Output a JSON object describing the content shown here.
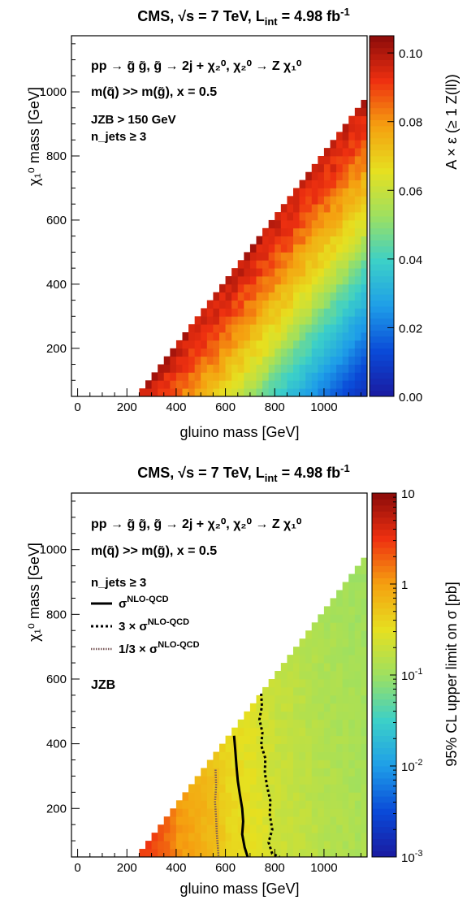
{
  "colors": {
    "palette": [
      "#1a1aa0",
      "#0a4ad8",
      "#1e9ee8",
      "#3cd0c8",
      "#9ee060",
      "#e6e020",
      "#f5a010",
      "#ee3010",
      "#8a0a0a"
    ],
    "limit_line": "#000000",
    "background": "#ffffff"
  },
  "chart_data": [
    {
      "type": "heatmap",
      "title": "CMS, √s = 7 TeV, L_int = 4.98 fb^-1",
      "title_parts": {
        "exp": "CMS, ",
        "sqrt": "√s = 7 TeV, L",
        "lumi_sub": "int",
        "lumi_val": " = 4.98 fb",
        "lumi_sup": "-1"
      },
      "xlabel": "gluino mass [GeV]",
      "ylabel": "χ₁⁰ mass [GeV]",
      "zlabel": "A × ε (≥ 1 Z(ll))",
      "xlim": [
        -25,
        1175
      ],
      "ylim": [
        50,
        1175
      ],
      "zlim": [
        0.0,
        0.105
      ],
      "z_scale": "linear",
      "xticks": [
        0,
        200,
        400,
        600,
        800,
        1000
      ],
      "yticks": [
        200,
        400,
        600,
        800,
        1000
      ],
      "zticks": [
        "0.00",
        "0.02",
        "0.04",
        "0.06",
        "0.08",
        "0.10"
      ],
      "annotations": [
        "pp → g̃ g̃, g̃ → 2j + χ₂⁰, χ₂⁰ → Z χ₁⁰",
        "m(q̃) >> m(g̃), x = 0.5",
        "JZB > 150 GeV",
        "n_jets ≥ 3"
      ],
      "grid": false,
      "bin_width_gev": 25,
      "region": "χ₁⁰ mass ≤ gluino mass − 200 GeV, gluino mass 250–1175 GeV, χ₁⁰ mass ≥ 50 GeV",
      "profile": [
        {
          "gap_gev": 0,
          "z": 0.098
        },
        {
          "gap_gev": 100,
          "z": 0.09
        },
        {
          "gap_gev": 200,
          "z": 0.08
        },
        {
          "gap_gev": 300,
          "z": 0.07
        },
        {
          "gap_gev": 400,
          "z": 0.06
        },
        {
          "gap_gev": 500,
          "z": 0.045
        },
        {
          "gap_gev": 600,
          "z": 0.035
        },
        {
          "gap_gev": 700,
          "z": 0.025
        },
        {
          "gap_gev": 800,
          "z": 0.015
        },
        {
          "gap_gev": 900,
          "z": 0.007
        },
        {
          "gap_gev": 1000,
          "z": 0.003
        }
      ]
    },
    {
      "type": "heatmap",
      "title": "CMS, √s = 7 TeV, L_int = 4.98 fb^-1",
      "title_parts": {
        "exp": "CMS, ",
        "sqrt": "√s = 7 TeV, L",
        "lumi_sub": "int",
        "lumi_val": " = 4.98 fb",
        "lumi_sup": "-1"
      },
      "xlabel": "gluino mass [GeV]",
      "ylabel": "χ₁⁰ mass [GeV]",
      "zlabel": "95% CL upper limit on σ [pb]",
      "xlim": [
        -25,
        1175
      ],
      "ylim": [
        50,
        1175
      ],
      "zlim": [
        0.001,
        10
      ],
      "z_scale": "log",
      "xticks": [
        0,
        200,
        400,
        600,
        800,
        1000
      ],
      "yticks": [
        200,
        400,
        600,
        800,
        1000
      ],
      "zticks": [
        {
          "base": "10",
          "exp": ""
        },
        {
          "base": "1",
          "exp": ""
        },
        {
          "base": "10",
          "exp": "-1"
        },
        {
          "base": "10",
          "exp": "-2"
        },
        {
          "base": "10",
          "exp": "-3"
        }
      ],
      "annotations": [
        "pp → g̃ g̃, g̃ → 2j + χ₂⁰, χ₂⁰ → Z χ₁⁰",
        "m(q̃) >> m(g̃), x = 0.5",
        "n_jets ≥ 3",
        "JZB"
      ],
      "grid": false,
      "bin_width_gev": 25,
      "region": "χ₁⁰ mass ≤ gluino mass − 200 GeV, gluino mass 250–1175 GeV, χ₁⁰ mass ≥ 50 GeV",
      "profile": [
        {
          "gluino_mass": 250,
          "z": 3.0
        },
        {
          "gluino_mass": 400,
          "z": 1.0
        },
        {
          "gluino_mass": 600,
          "z": 0.35
        },
        {
          "gluino_mass": 800,
          "z": 0.18
        },
        {
          "gluino_mass": 1000,
          "z": 0.12
        },
        {
          "gluino_mass": 1175,
          "z": 0.1
        }
      ],
      "legend": [
        {
          "label": "σ",
          "sup": "NLO-QCD",
          "style": "solid"
        },
        {
          "label": "3 × σ",
          "sup": "NLO-QCD",
          "style": "dashed"
        },
        {
          "label": "1/3 × σ",
          "sup": "NLO-QCD",
          "style": "dotted"
        }
      ],
      "series": [
        {
          "name": "σ NLO-QCD",
          "style": "solid",
          "points": [
            [
              635,
              425
            ],
            [
              640,
              380
            ],
            [
              645,
              330
            ],
            [
              650,
              285
            ],
            [
              658,
              245
            ],
            [
              668,
              200
            ],
            [
              672,
              160
            ],
            [
              668,
              120
            ],
            [
              678,
              80
            ],
            [
              690,
              50
            ]
          ]
        },
        {
          "name": "3 × σ NLO-QCD",
          "style": "dashed",
          "points": [
            [
              745,
              555
            ],
            [
              748,
              515
            ],
            [
              738,
              475
            ],
            [
              750,
              435
            ],
            [
              745,
              395
            ],
            [
              762,
              355
            ],
            [
              760,
              310
            ],
            [
              770,
              265
            ],
            [
              782,
              225
            ],
            [
              780,
              180
            ],
            [
              790,
              135
            ],
            [
              775,
              95
            ],
            [
              790,
              60
            ],
            [
              820,
              50
            ]
          ]
        },
        {
          "name": "1/3 × σ NLO-QCD",
          "style": "dotted",
          "points": [
            [
              560,
              320
            ],
            [
              562,
              270
            ],
            [
              558,
              220
            ],
            [
              562,
              170
            ],
            [
              565,
              120
            ],
            [
              570,
              70
            ],
            [
              572,
              50
            ]
          ]
        }
      ]
    }
  ]
}
